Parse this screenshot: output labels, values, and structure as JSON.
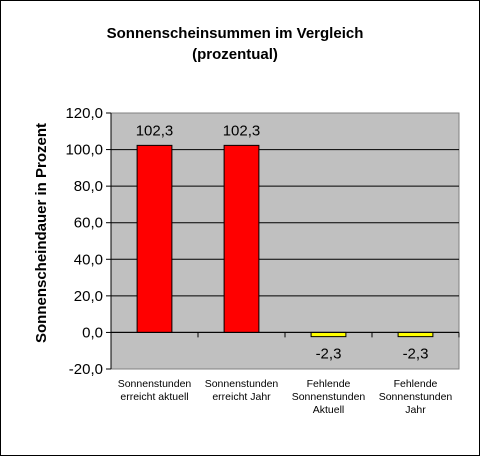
{
  "chart_data": {
    "type": "bar",
    "title": [
      "Sonnenscheinsummen  im  Vergleich",
      "(prozentual)"
    ],
    "ylabel": "Sonnenscheindauer  in  Prozent",
    "xlabel": "",
    "ylim": [
      -20,
      120
    ],
    "yticks": [
      -20,
      0,
      20,
      40,
      60,
      80,
      100,
      120
    ],
    "ytick_labels": [
      "-20,0",
      "0,0",
      "20,0",
      "40,0",
      "60,0",
      "80,0",
      "100,0",
      "120,0"
    ],
    "grid": true,
    "categories": [
      [
        "Sonnenstunden",
        "erreicht aktuell"
      ],
      [
        "Sonnenstunden",
        "erreicht Jahr"
      ],
      [
        "Fehlende",
        "Sonnenstunden",
        "Aktuell"
      ],
      [
        "Fehlende",
        "Sonnenstunden",
        "Jahr"
      ]
    ],
    "values": [
      102.3,
      102.3,
      -2.3,
      -2.3
    ],
    "value_labels": [
      "102,3",
      "102,3",
      "-2,3",
      "-2,3"
    ],
    "bar_colors": [
      "#ff0000",
      "#ff0000",
      "#ffff00",
      "#ffff00"
    ],
    "plot_background": "#c0c0c0"
  }
}
